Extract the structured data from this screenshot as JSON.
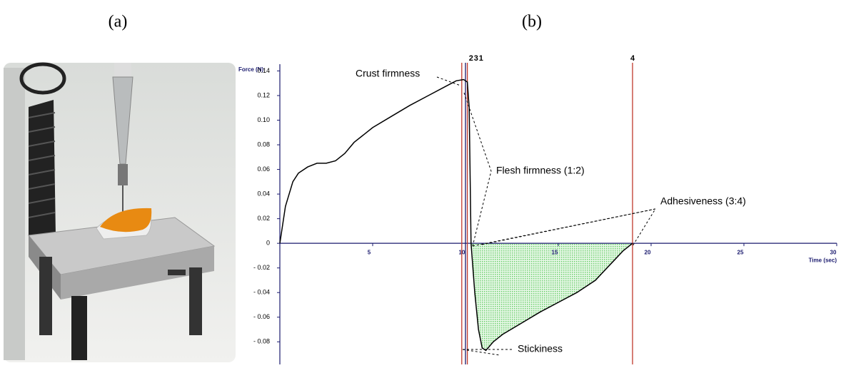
{
  "panels": {
    "a": "(a)",
    "b": "(b)"
  },
  "chart_data": {
    "type": "line",
    "x_label": "Time (sec)",
    "y_label": "Force (N)",
    "xlim": [
      0,
      30
    ],
    "ylim": [
      -0.092,
      0.142
    ],
    "xticks": [
      5,
      10,
      15,
      20,
      25,
      30
    ],
    "yticks": [
      0.14,
      0.12,
      {
        "value": 0.1,
        "label": "0.10"
      },
      0.08,
      0.06,
      0.04,
      0.02,
      0,
      {
        "value": -0.02,
        "label": "- 0.02"
      },
      {
        "value": -0.04,
        "label": "- 0.04"
      },
      {
        "value": -0.06,
        "label": "- 0.06"
      },
      {
        "value": -0.08,
        "label": "- 0.08"
      }
    ],
    "color": "#000000",
    "area_color": "#7ed67e",
    "x": [
      0,
      0.3,
      0.7,
      1,
      1.5,
      2,
      2.5,
      3,
      3.5,
      4,
      5,
      6,
      7,
      8,
      9,
      9.5,
      9.9,
      10.1,
      10.2,
      10.3,
      10.5,
      10.7,
      10.9,
      11.1,
      11.5,
      12,
      13,
      14,
      15,
      16,
      17,
      17.5,
      18,
      18.5,
      19
    ],
    "values": [
      0,
      0.03,
      0.05,
      0.057,
      0.062,
      0.065,
      0.065,
      0.067,
      0.073,
      0.082,
      0.094,
      0.103,
      0.112,
      0.12,
      0.128,
      0.132,
      0.133,
      0.131,
      0.11,
      0,
      -0.04,
      -0.07,
      -0.085,
      -0.087,
      -0.08,
      -0.074,
      -0.065,
      -0.056,
      -0.048,
      -0.04,
      -0.03,
      -0.022,
      -0.014,
      -0.006,
      0
    ],
    "markers": [
      {
        "label": "2",
        "x": 9.8,
        "color": "#c0392b"
      },
      {
        "label": "3",
        "x": 10.0,
        "color": "#1a1a6e"
      },
      {
        "label": "1",
        "x": 10.1,
        "color": "#c0392b"
      },
      {
        "label": "4",
        "x": 19.0,
        "color": "#c0392b"
      }
    ],
    "annotations": [
      "Crust firmness",
      "Flesh firmness (1:2)",
      "Adhesiveness (3:4)",
      "Stickiness"
    ]
  }
}
